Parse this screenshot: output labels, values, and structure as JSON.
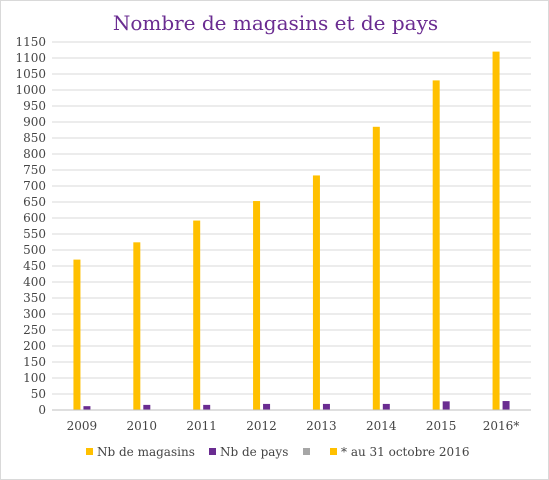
{
  "chart_data": {
    "type": "bar",
    "title": "Nombre de magasins et de pays",
    "categories": [
      "2009",
      "2010",
      "2011",
      "2012",
      "2013",
      "2014",
      "2015",
      "2016*"
    ],
    "series": [
      {
        "name": "Nb de magasins",
        "color": "#ffc000",
        "values": [
          470,
          524,
          592,
          653,
          733,
          885,
          1030,
          1120
        ]
      },
      {
        "name": "Nb de pays",
        "color": "#6a2c91",
        "values": [
          12,
          16,
          16,
          19,
          19,
          19,
          27,
          28
        ]
      },
      {
        "name": "",
        "color": "#a6a6a6",
        "values": [
          0,
          0,
          0,
          0,
          0,
          0,
          0,
          0
        ]
      }
    ],
    "legend": [
      {
        "label": "Nb de magasins",
        "color": "#ffc000"
      },
      {
        "label": "Nb de pays",
        "color": "#6a2c91"
      },
      {
        "label": "",
        "color": "#a6a6a6"
      },
      {
        "label": "* au 31 octobre 2016",
        "color": "#ffc000"
      }
    ],
    "yticks": [
      0,
      50,
      100,
      150,
      200,
      250,
      300,
      350,
      400,
      450,
      500,
      550,
      600,
      650,
      700,
      750,
      800,
      850,
      900,
      950,
      1000,
      1050,
      1100,
      1150
    ],
    "ylim": [
      0,
      1150
    ],
    "grid": true,
    "legend_position": "bottom"
  }
}
